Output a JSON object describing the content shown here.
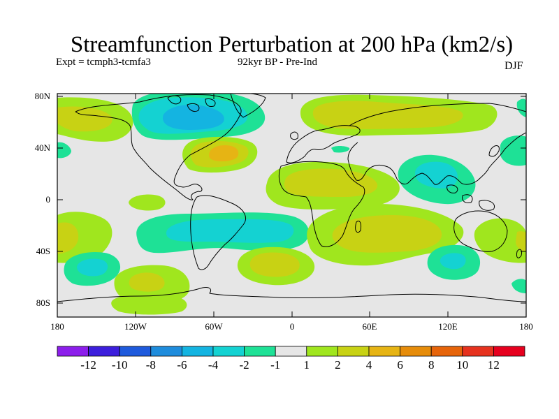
{
  "title": "Streamfunction Perturbation at 200 hPa (km2/s)",
  "subtitle_left": "Expt = tcmph3-tcmfa3",
  "subtitle_center": "92kyr BP - Pre-Ind",
  "subtitle_right": "DJF",
  "y_ticks": [
    "80N",
    "40N",
    "0",
    "40S",
    "80S"
  ],
  "x_ticks": [
    "180",
    "120W",
    "60W",
    "0",
    "60E",
    "120E",
    "180"
  ],
  "colorbar": {
    "labels": [
      "-12",
      "-10",
      "-8",
      "-6",
      "-4",
      "-2",
      "-1",
      "1",
      "2",
      "4",
      "6",
      "8",
      "10",
      "12"
    ],
    "colors": [
      "#8c1eeb",
      "#3c1edc",
      "#1e5adc",
      "#1e8cdc",
      "#14b4e1",
      "#14d2d2",
      "#1ee196",
      "#e6e6e6",
      "#a0e61e",
      "#c8d214",
      "#e6b414",
      "#e68c0a",
      "#e6640a",
      "#e6321e",
      "#e6001e"
    ]
  },
  "colors": {
    "background_field": "#e6e6e6",
    "coastline": "#000000"
  }
}
